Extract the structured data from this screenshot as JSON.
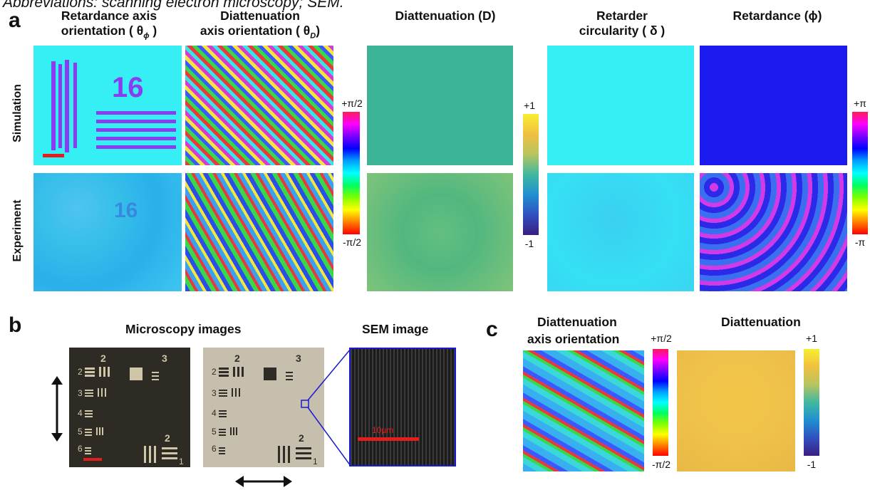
{
  "caption": "Abbreviations: scanning electron microscopy; SEM.",
  "panel_a": {
    "letter": "a",
    "columns": [
      {
        "line1": "Retardance axis",
        "line2": "orientation ( θ",
        "sub": "ϕ",
        "close": ")"
      },
      {
        "line1": "Diattenuation",
        "line2": "axis orientation ( θ",
        "sub": "D",
        "close": ")"
      },
      {
        "line1": "Diattenuation (D)"
      },
      {
        "line1": "Retarder",
        "line2": "circularity ( δ )"
      },
      {
        "line1": "Retardance (ϕ)"
      }
    ],
    "rows": [
      "Simulation",
      "Experiment"
    ],
    "sim_number": "16",
    "exp_number": "16",
    "cbar1": {
      "top": "+π/2",
      "bottom": "-π/2"
    },
    "cbar2": {
      "top": "+1",
      "bottom": "-1"
    },
    "cbar3": {
      "top": "+π",
      "bottom": "-π"
    }
  },
  "panel_b": {
    "letter": "b",
    "title_micro": "Microscopy images",
    "title_sem": "SEM image",
    "scale_label": "10μm",
    "target_numbers": [
      "2",
      "3",
      "2",
      "3",
      "4",
      "5",
      "6",
      "1",
      "2"
    ]
  },
  "panel_c": {
    "letter": "c",
    "title1_line1": "Diattenuation",
    "title1_line2": "axis orientation",
    "title2": "Diattenuation",
    "cbar1": {
      "top": "+π/2",
      "bottom": "-π/2"
    },
    "cbar2": {
      "top": "+1",
      "bottom": "-1"
    }
  },
  "colors": {
    "cyan": "#35eff4",
    "teal": "#3bb595",
    "blue": "#1a1aee",
    "purple": "#8a3cf0",
    "red_scale": "#e41e1e",
    "sem_border": "#1a1ad0",
    "yellow": "#f2c548"
  }
}
